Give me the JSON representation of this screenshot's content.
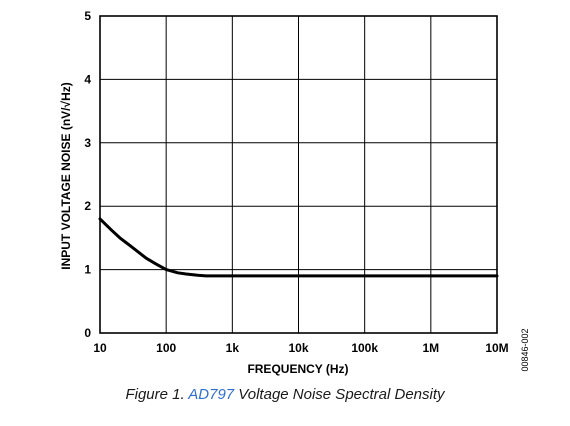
{
  "chart_data": {
    "type": "line",
    "xscale": "log",
    "xlabel": "FREQUENCY (Hz)",
    "ylabel": "INPUT VOLTAGE NOISE (nV/√Hz)",
    "xlim": [
      10,
      10000000
    ],
    "ylim": [
      0,
      5
    ],
    "x_ticks": [
      {
        "value": 10,
        "label": "10"
      },
      {
        "value": 100,
        "label": "100"
      },
      {
        "value": 1000,
        "label": "1k"
      },
      {
        "value": 10000,
        "label": "10k"
      },
      {
        "value": 100000,
        "label": "100k"
      },
      {
        "value": 1000000,
        "label": "1M"
      },
      {
        "value": 10000000,
        "label": "10M"
      }
    ],
    "y_ticks": [
      {
        "value": 0,
        "label": "0"
      },
      {
        "value": 1,
        "label": "1"
      },
      {
        "value": 2,
        "label": "2"
      },
      {
        "value": 3,
        "label": "3"
      },
      {
        "value": 4,
        "label": "4"
      },
      {
        "value": 5,
        "label": "5"
      }
    ],
    "grid": true,
    "series": [
      {
        "color": "#000000",
        "x": [
          10,
          15,
          20,
          30,
          50,
          70,
          100,
          150,
          200,
          300,
          400,
          1000,
          10000,
          100000,
          1000000,
          10000000
        ],
        "y": [
          1.8,
          1.62,
          1.5,
          1.36,
          1.18,
          1.09,
          1.0,
          0.95,
          0.93,
          0.91,
          0.9,
          0.9,
          0.9,
          0.9,
          0.9,
          0.9
        ]
      }
    ]
  },
  "side_id": "00846-002",
  "caption": {
    "prefix": "Figure 1. ",
    "link": "AD797",
    "suffix": " Voltage Noise Spectral Density",
    "link_color": "#2f6fcf"
  }
}
